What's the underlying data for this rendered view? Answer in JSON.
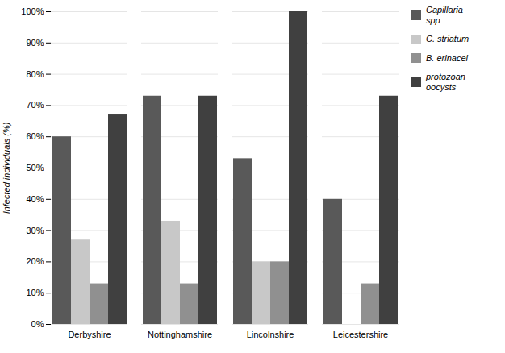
{
  "chart_data": {
    "type": "bar",
    "categories": [
      "Derbyshire",
      "Nottinghamshire",
      "Lincolnshire",
      "Leicestershire"
    ],
    "series": [
      {
        "name": "Capillaria\nspp",
        "values": [
          60,
          73,
          53,
          40
        ],
        "color": "#595959"
      },
      {
        "name": "C. striatum",
        "values": [
          27,
          33,
          20,
          0
        ],
        "color": "#c8c8c8"
      },
      {
        "name": "B. erinacei",
        "values": [
          13,
          13,
          20,
          13
        ],
        "color": "#909090"
      },
      {
        "name": "protozoan\noocysts",
        "values": [
          67,
          73,
          100,
          73
        ],
        "color": "#404040"
      }
    ],
    "ylabel": "Infected individuals (%)",
    "ylim": [
      0,
      100
    ],
    "yticks": [
      {
        "value": 0,
        "label": "0%"
      },
      {
        "value": 10,
        "label": "10%"
      },
      {
        "value": 20,
        "label": "20%"
      },
      {
        "value": 30,
        "label": "30%"
      },
      {
        "value": 40,
        "label": "40%"
      },
      {
        "value": 50,
        "label": "50%"
      },
      {
        "value": 60,
        "label": "60%"
      },
      {
        "value": 70,
        "label": "70%"
      },
      {
        "value": 80,
        "label": "80%"
      },
      {
        "value": 90,
        "label": "90%"
      },
      {
        "value": 100,
        "label": "100%"
      }
    ],
    "grid": true,
    "legend": "upper right"
  }
}
